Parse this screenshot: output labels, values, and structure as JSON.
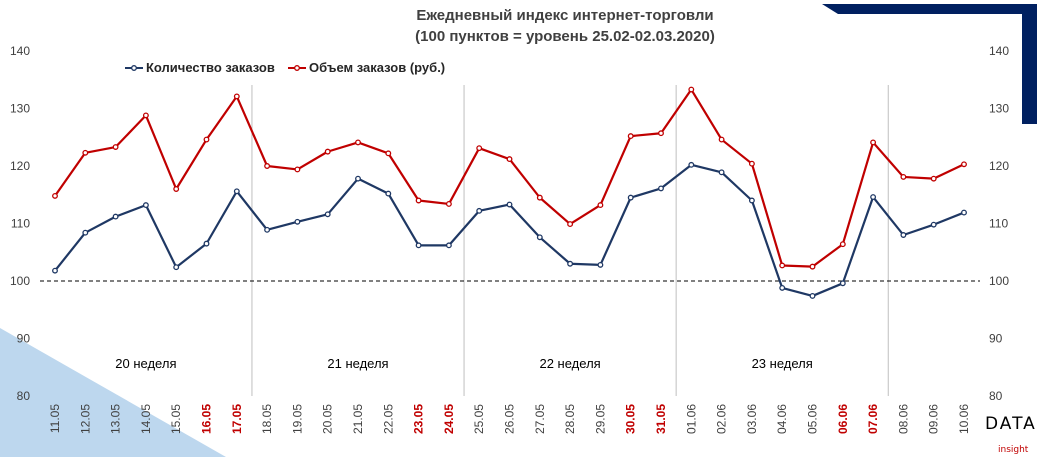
{
  "chart_data": {
    "type": "line",
    "title": [
      "Ежедневный индекс интернет-торговли",
      "(100 пунктов = уровень 25.02-02.03.2020)"
    ],
    "categories": [
      "11.05",
      "12.05",
      "13.05",
      "14.05",
      "15.05",
      "16.05",
      "17.05",
      "18.05",
      "19.05",
      "20.05",
      "21.05",
      "22.05",
      "23.05",
      "24.05",
      "25.05",
      "26.05",
      "27.05",
      "28.05",
      "29.05",
      "30.05",
      "31.05",
      "01.06",
      "02.06",
      "03.06",
      "04.06",
      "05.06",
      "06.06",
      "07.06",
      "08.06",
      "09.06",
      "10.06"
    ],
    "highlighted_categories": [
      "16.05",
      "17.05",
      "23.05",
      "24.05",
      "30.05",
      "31.05",
      "06.06",
      "07.06"
    ],
    "series": [
      {
        "name": "Количество заказов",
        "color": "#1f3864",
        "values": [
          101.8,
          108.4,
          111.2,
          113.2,
          102.4,
          106.5,
          115.6,
          108.9,
          110.3,
          111.6,
          117.8,
          115.2,
          106.2,
          106.2,
          112.2,
          113.3,
          107.6,
          103.0,
          102.8,
          114.5,
          116.1,
          120.2,
          118.9,
          114.0,
          98.8,
          97.4,
          99.6,
          114.6,
          108.0,
          109.8,
          111.9
        ]
      },
      {
        "name": "Объем заказов (руб.)",
        "color": "#c00000",
        "values": [
          114.8,
          122.3,
          123.3,
          128.8,
          116.0,
          124.6,
          132.1,
          120.0,
          119.4,
          122.5,
          124.1,
          122.2,
          114.0,
          113.4,
          123.1,
          121.2,
          114.5,
          109.9,
          113.2,
          125.2,
          125.7,
          133.3,
          124.6,
          120.4,
          102.7,
          102.5,
          106.4,
          124.1,
          118.1,
          117.8,
          120.3
        ]
      }
    ],
    "ylim": [
      80,
      140
    ],
    "yticks": [
      80,
      90,
      100,
      110,
      120,
      130,
      140
    ],
    "reference_line": 100,
    "week_dividers_after": [
      "17.05",
      "24.05",
      "31.05",
      "07.06"
    ],
    "week_labels": [
      "20 неделя",
      "21 неделя",
      "22 неделя",
      "23 неделя"
    ],
    "legend_position": "top-left",
    "grid": false,
    "xlabel": "",
    "ylabel": ""
  },
  "logo": {
    "main": "DATA",
    "sub": "insight"
  },
  "colors": {
    "accent_navy": "#002060",
    "accent_light_blue": "#bdd7ee",
    "weekend_red": "#c00000",
    "text_gray": "#404040"
  }
}
